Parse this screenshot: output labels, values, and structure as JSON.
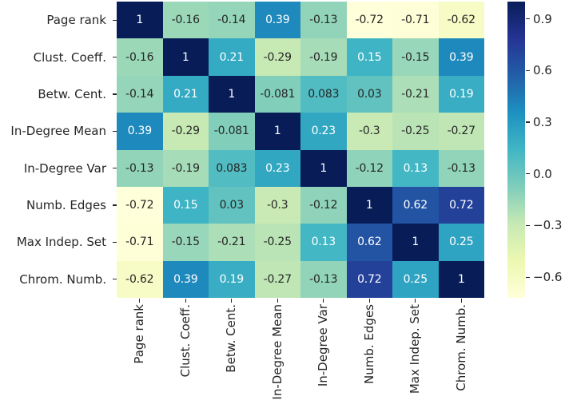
{
  "chart_data": {
    "type": "heatmap",
    "title": "",
    "xlabel": "",
    "ylabel": "",
    "legend_position": "colorbar-right",
    "grid": false,
    "colormap": "YlGnBu",
    "colormap_stops": [
      "#ffffd9",
      "#edf8b1",
      "#c7e9b4",
      "#7fcdbb",
      "#41b6c4",
      "#1d91c0",
      "#225ea8",
      "#253494",
      "#081d58"
    ],
    "vmin": -0.72,
    "vmax": 1.0,
    "annot_color_dark": "#262626",
    "annot_color_light": "#ffffff",
    "tick_color": "#262626",
    "row_labels": [
      "Page rank",
      "Clust. Coeff.",
      "Betw. Cent.",
      "In-Degree Mean",
      "In-Degree Var",
      "Numb. Edges",
      "Max Indep. Set",
      "Chrom. Numb."
    ],
    "col_labels": [
      "Page rank",
      "Clust. Coeff.",
      "Betw. Cent.",
      "In-Degree Mean",
      "In-Degree Var",
      "Numb. Edges",
      "Max Indep. Set",
      "Chrom. Numb."
    ],
    "matrix": [
      [
        "1",
        "-0.16",
        "-0.14",
        "0.39",
        "-0.13",
        "-0.72",
        "-0.71",
        "-0.62"
      ],
      [
        "-0.16",
        "1",
        "0.21",
        "-0.29",
        "-0.19",
        "0.15",
        "-0.15",
        "0.39"
      ],
      [
        "-0.14",
        "0.21",
        "1",
        "-0.081",
        "0.083",
        "0.03",
        "-0.21",
        "0.19"
      ],
      [
        "0.39",
        "-0.29",
        "-0.081",
        "1",
        "0.23",
        "-0.3",
        "-0.25",
        "-0.27"
      ],
      [
        "-0.13",
        "-0.19",
        "0.083",
        "0.23",
        "1",
        "-0.12",
        "0.13",
        "-0.13"
      ],
      [
        "-0.72",
        "0.15",
        "0.03",
        "-0.3",
        "-0.12",
        "1",
        "0.62",
        "0.72"
      ],
      [
        "-0.71",
        "-0.15",
        "-0.21",
        "-0.25",
        "0.13",
        "0.62",
        "1",
        "0.25"
      ],
      [
        "-0.62",
        "0.39",
        "0.19",
        "-0.27",
        "-0.13",
        "0.72",
        "0.25",
        "1"
      ]
    ],
    "colorbar_ticks": [
      {
        "value": 0.9,
        "label": "0.9"
      },
      {
        "value": 0.6,
        "label": "0.6"
      },
      {
        "value": 0.3,
        "label": "0.3"
      },
      {
        "value": 0.0,
        "label": "0.0"
      },
      {
        "value": -0.3,
        "label": "−0.3"
      },
      {
        "value": -0.6,
        "label": "−0.6"
      }
    ]
  }
}
